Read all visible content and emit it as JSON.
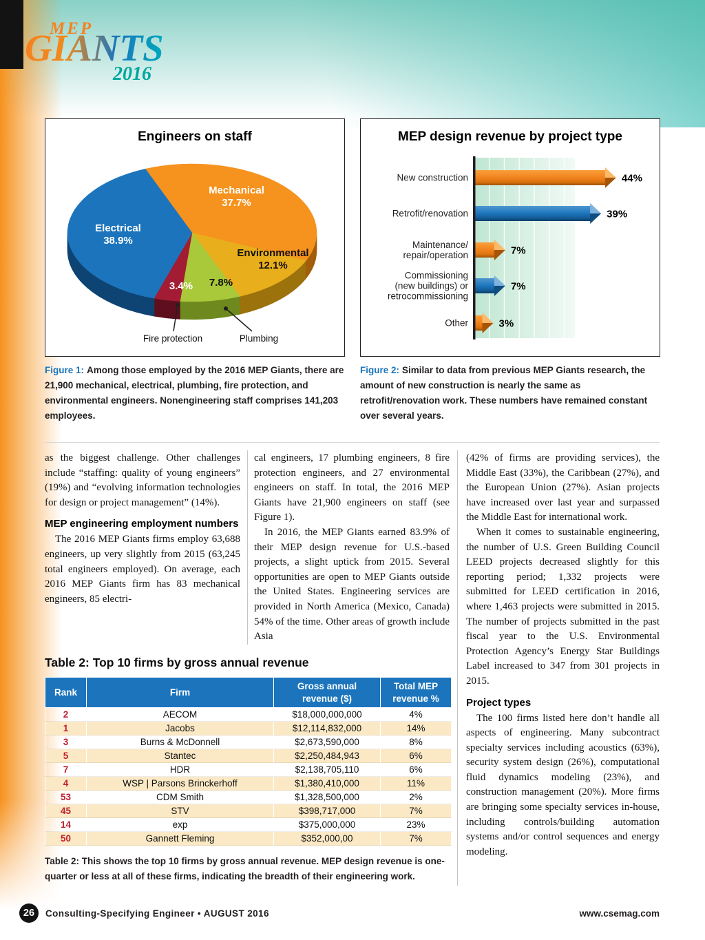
{
  "logo": {
    "mep": "MEP",
    "giants": "GIANTS",
    "year": "2016"
  },
  "chart_data": [
    {
      "type": "pie",
      "title": "Engineers on staff",
      "start_angle_deg": -112,
      "slices": [
        {
          "label": "Mechanical",
          "value": 37.7,
          "pct_label": "37.7%",
          "color": "#F6921E",
          "dark": "#A35E0B"
        },
        {
          "label": "Environmental",
          "value": 12.1,
          "pct_label": "12.1%",
          "color": "#E9AE1B",
          "dark": "#9C720D"
        },
        {
          "label": "Plumbing",
          "value": 7.8,
          "pct_label": "7.8%",
          "color": "#A9C93A",
          "dark": "#6E8A1E"
        },
        {
          "label": "Fire protection",
          "value": 3.4,
          "pct_label": "3.4%",
          "color": "#A21D33",
          "dark": "#5E0F1E"
        },
        {
          "label": "Electrical",
          "value": 38.9,
          "pct_label": "38.9%",
          "color": "#1C75BC",
          "dark": "#0E4474"
        }
      ]
    },
    {
      "type": "bar",
      "title": "MEP design revenue by project type",
      "orientation": "horizontal",
      "categories": [
        [
          "New construction"
        ],
        [
          "Retrofit/renovation"
        ],
        [
          "Maintenance/",
          "repair/operation"
        ],
        [
          "Commissioning",
          "(new buildings) or",
          "retrocommissioning"
        ],
        [
          "Other"
        ]
      ],
      "values": [
        44,
        39,
        7,
        7,
        3
      ],
      "value_labels": [
        "44%",
        "39%",
        "7%",
        "7%",
        "3%"
      ],
      "bar_colors": [
        "#F6921E",
        "#1C75BC",
        "#F6921E",
        "#1C75BC",
        "#F6921E"
      ],
      "xlim": [
        0,
        50
      ],
      "gridlines": true
    }
  ],
  "figure1": {
    "caption_lead": "Figure 1:",
    "caption_text": "Among those employed by the 2016 MEP Giants, there are 21,900 mechanical, electrical, plumbing, fire protection, and environmental engineers. Nonengineering staff comprises 141,203 employees."
  },
  "figure2": {
    "caption_lead": "Figure 2:",
    "caption_text": "Similar to data from previous MEP Giants research, the amount of new construction is nearly the same as retrofit/renovation work. These numbers have remained constant over several years."
  },
  "article": {
    "columns": [
      [
        {
          "t": "p",
          "indent": false,
          "text": "as the biggest challenge. Other challenges include “staffing: quality of young engineers” (19%) and “evolving information technologies for design or project management” (14%)."
        },
        {
          "t": "h",
          "text": "MEP engineering employment numbers"
        },
        {
          "t": "p",
          "indent": true,
          "text": "The 2016 MEP Giants firms employ 63,688 engineers, up very slightly from 2015 (63,245 total engineers employed). On average, each 2016 MEP Giants firm has 83 mechanical engineers, 85 electri-"
        }
      ],
      [
        {
          "t": "p",
          "indent": false,
          "text": "cal engineers, 17 plumbing engineers, 8 fire protection engineers, and 27 environmental engineers on staff. In total, the 2016 MEP Giants have 21,900 engineers on staff (see Figure 1)."
        },
        {
          "t": "p",
          "indent": true,
          "text": "In 2016, the MEP Giants earned 83.9% of their MEP design revenue for U.S.-based projects, a slight uptick from 2015. Several opportunities are open to MEP Giants outside the United States. Engineering services are provided in North America (Mexico, Canada) 54% of the time. Other areas of growth include Asia"
        }
      ],
      [
        {
          "t": "p",
          "indent": false,
          "text": "(42% of firms are providing services), the Middle East (33%), the Caribbean (27%), and the European Union (27%). Asian projects have increased over last year and surpassed the Middle East for international work."
        },
        {
          "t": "p",
          "indent": true,
          "text": "When it comes to sustainable engineering, the number of U.S. Green Building Council LEED projects decreased slightly for this reporting period; 1,332 projects were submitted for LEED certification in 2016, where 1,463 projects were submitted in 2015. The number of projects submitted in the past fiscal year to the U.S. Environmental Protection Agency’s Energy Star Buildings Label increased to 347 from 301 projects in 2015."
        },
        {
          "t": "h",
          "text": "Project types"
        },
        {
          "t": "p",
          "indent": true,
          "text": "The 100 firms listed here don’t handle all aspects of engineering. Many subcontract specialty services including acoustics (63%), security system design (26%), computational fluid dynamics modeling (23%), and construction management (20%). More firms are bringing some specialty services in-house, including controls/building automation systems and/or control sequences and energy modeling."
        }
      ]
    ]
  },
  "table2": {
    "title": "Table 2: Top 10 firms by gross annual revenue",
    "headers": [
      [
        "Rank"
      ],
      [
        "Firm"
      ],
      [
        "Gross annual",
        "revenue ($)"
      ],
      [
        "Total MEP",
        "revenue %"
      ]
    ],
    "rows": [
      [
        "2",
        "AECOM",
        "$18,000,000,000",
        "4%"
      ],
      [
        "1",
        "Jacobs",
        "$12,114,832,000",
        "14%"
      ],
      [
        "3",
        "Burns & McDonnell",
        "$2,673,590,000",
        "8%"
      ],
      [
        "5",
        "Stantec",
        "$2,250,484,943",
        "6%"
      ],
      [
        "7",
        "HDR",
        "$2,138,705,110",
        "6%"
      ],
      [
        "4",
        "WSP | Parsons Brinckerhoff",
        "$1,380,410,000",
        "11%"
      ],
      [
        "53",
        "CDM Smith",
        "$1,328,500,000",
        "2%"
      ],
      [
        "45",
        "STV",
        "$398,717,000",
        "7%"
      ],
      [
        "14",
        "exp",
        "$375,000,000",
        "23%"
      ],
      [
        "50",
        "Gannett Fleming",
        "$352,000,00",
        "7%"
      ]
    ],
    "caption": "Table 2: This shows the top 10 firms by gross annual revenue. MEP design revenue is one-quarter or less at all of these firms, indicating the breadth of their engineering work."
  },
  "footer": {
    "page_number": "26",
    "left_text": "Consulting-Specifying Engineer • AUGUST 2016",
    "right_text": "www.csemag.com"
  }
}
